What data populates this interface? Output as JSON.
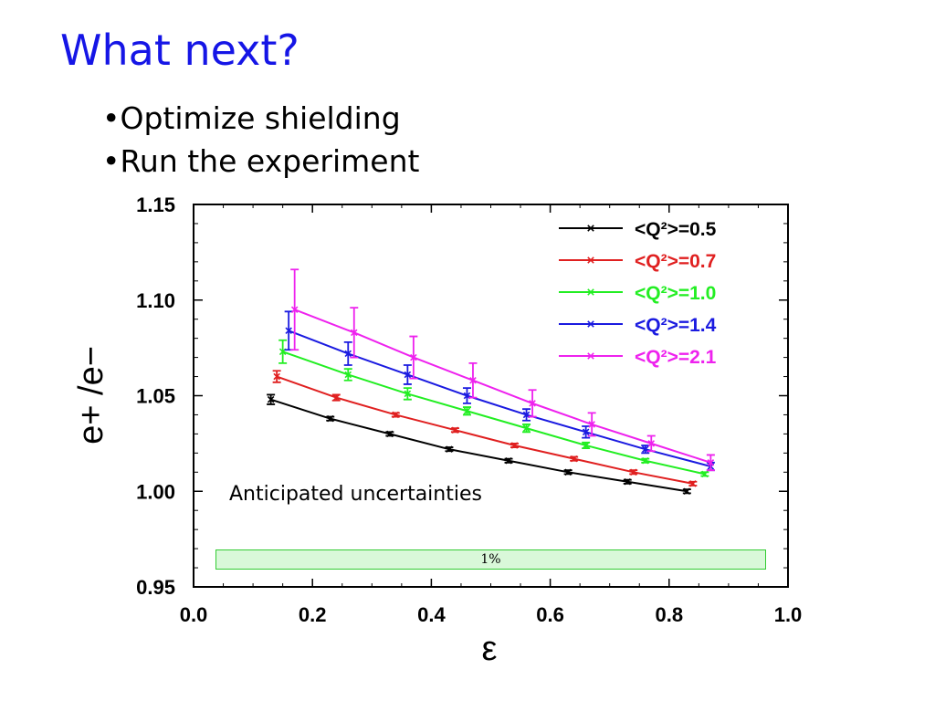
{
  "slide": {
    "title": "What next?",
    "bullets": [
      "Optimize shielding",
      "Run the experiment"
    ],
    "annotation": "Anticipated uncertainties",
    "band_label": "1%",
    "band_color": "#33cc33"
  },
  "chart_data": {
    "type": "line",
    "xlabel": "ε",
    "ylabel": "e+ /e−",
    "xlim": [
      0.0,
      1.0
    ],
    "ylim": [
      0.95,
      1.15
    ],
    "xticks": [
      "0.0",
      "0.2",
      "0.4",
      "0.6",
      "0.8",
      "1.0"
    ],
    "yticks": [
      "0.95",
      "1.00",
      "1.05",
      "1.10",
      "1.15"
    ],
    "legend": "top-right",
    "grid": false,
    "series": [
      {
        "name": "<Q²>=0.5",
        "color": "#000000",
        "x": [
          0.13,
          0.23,
          0.33,
          0.43,
          0.53,
          0.63,
          0.73,
          0.83
        ],
        "y": [
          1.048,
          1.038,
          1.03,
          1.022,
          1.016,
          1.01,
          1.005,
          1.0
        ],
        "err": [
          0.0025,
          0.001,
          0.001,
          0.001,
          0.001,
          0.001,
          0.001,
          0.001
        ]
      },
      {
        "name": "<Q²>=0.7",
        "color": "#e02020",
        "x": [
          0.14,
          0.24,
          0.34,
          0.44,
          0.54,
          0.64,
          0.74,
          0.84
        ],
        "y": [
          1.06,
          1.049,
          1.04,
          1.032,
          1.024,
          1.017,
          1.01,
          1.004
        ],
        "err": [
          0.003,
          0.0015,
          0.001,
          0.001,
          0.001,
          0.001,
          0.001,
          0.001
        ]
      },
      {
        "name": "<Q²>=1.0",
        "color": "#22ee22",
        "x": [
          0.15,
          0.26,
          0.36,
          0.46,
          0.56,
          0.66,
          0.76,
          0.86
        ],
        "y": [
          1.073,
          1.061,
          1.051,
          1.042,
          1.033,
          1.024,
          1.016,
          1.009
        ],
        "err": [
          0.006,
          0.003,
          0.003,
          0.002,
          0.002,
          0.0015,
          0.001,
          0.001
        ]
      },
      {
        "name": "<Q²>=1.4",
        "color": "#1a1ae0",
        "x": [
          0.16,
          0.26,
          0.36,
          0.46,
          0.56,
          0.66,
          0.76,
          0.87
        ],
        "y": [
          1.084,
          1.072,
          1.061,
          1.05,
          1.04,
          1.031,
          1.022,
          1.013
        ],
        "err": [
          0.01,
          0.006,
          0.005,
          0.004,
          0.003,
          0.003,
          0.002,
          0.002
        ]
      },
      {
        "name": "<Q²>=2.1",
        "color": "#ee22ee",
        "x": [
          0.17,
          0.27,
          0.37,
          0.47,
          0.57,
          0.67,
          0.77,
          0.87
        ],
        "y": [
          1.095,
          1.083,
          1.07,
          1.058,
          1.046,
          1.035,
          1.025,
          1.015
        ],
        "err": [
          0.021,
          0.013,
          0.011,
          0.009,
          0.007,
          0.006,
          0.004,
          0.004
        ]
      }
    ]
  }
}
